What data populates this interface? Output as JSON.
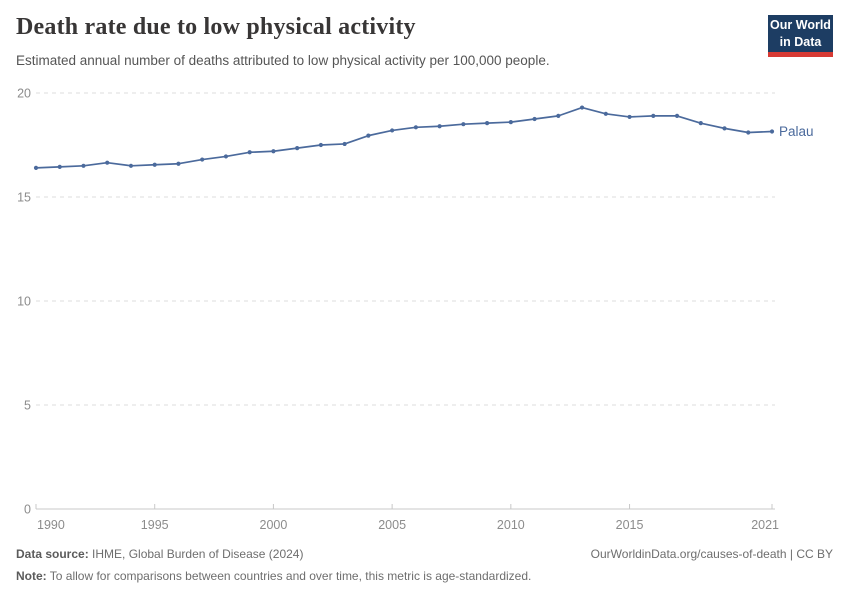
{
  "header": {
    "title": "Death rate due to low physical activity",
    "subtitle": "Estimated annual number of deaths attributed to low physical activity per 100,000 people.",
    "logo": {
      "line1": "Our World",
      "line2": "in Data",
      "bg_color": "#1d3d63",
      "accent_color": "#d73a34"
    }
  },
  "chart_data": {
    "type": "line",
    "title": "Death rate due to low physical activity",
    "xlabel": "",
    "ylabel": "",
    "ylim": [
      0,
      20
    ],
    "yticks": [
      0,
      5,
      10,
      15,
      20
    ],
    "xticks": [
      1990,
      1995,
      2000,
      2005,
      2010,
      2015,
      2021
    ],
    "grid": "horizontal-dashed",
    "legend_position": "end-of-line",
    "x": [
      1990,
      1991,
      1992,
      1993,
      1994,
      1995,
      1996,
      1997,
      1998,
      1999,
      2000,
      2001,
      2002,
      2003,
      2004,
      2005,
      2006,
      2007,
      2008,
      2009,
      2010,
      2011,
      2012,
      2013,
      2014,
      2015,
      2016,
      2017,
      2018,
      2019,
      2020,
      2021
    ],
    "series": [
      {
        "name": "Palau",
        "color": "#4b6a9c",
        "values": [
          16.4,
          16.45,
          16.5,
          16.65,
          16.5,
          16.55,
          16.6,
          16.8,
          16.95,
          17.15,
          17.2,
          17.35,
          17.5,
          17.55,
          17.95,
          18.2,
          18.35,
          18.4,
          18.5,
          18.55,
          18.6,
          18.75,
          18.9,
          19.3,
          19.0,
          18.85,
          18.9,
          18.9,
          18.55,
          18.3,
          18.1,
          18.15
        ]
      }
    ],
    "colors": {
      "gridline": "#dcdcdc",
      "axis": "#c8c8c8",
      "tick_label": "#8c8c8c"
    }
  },
  "footer": {
    "source_label": "Data source:",
    "source_text": " IHME, Global Burden of Disease (2024)",
    "link_text": "OurWorldinData.org/causes-of-death | CC BY",
    "note_label": "Note:",
    "note_text": " To allow for comparisons between countries and over time, this metric is age-standardized."
  }
}
